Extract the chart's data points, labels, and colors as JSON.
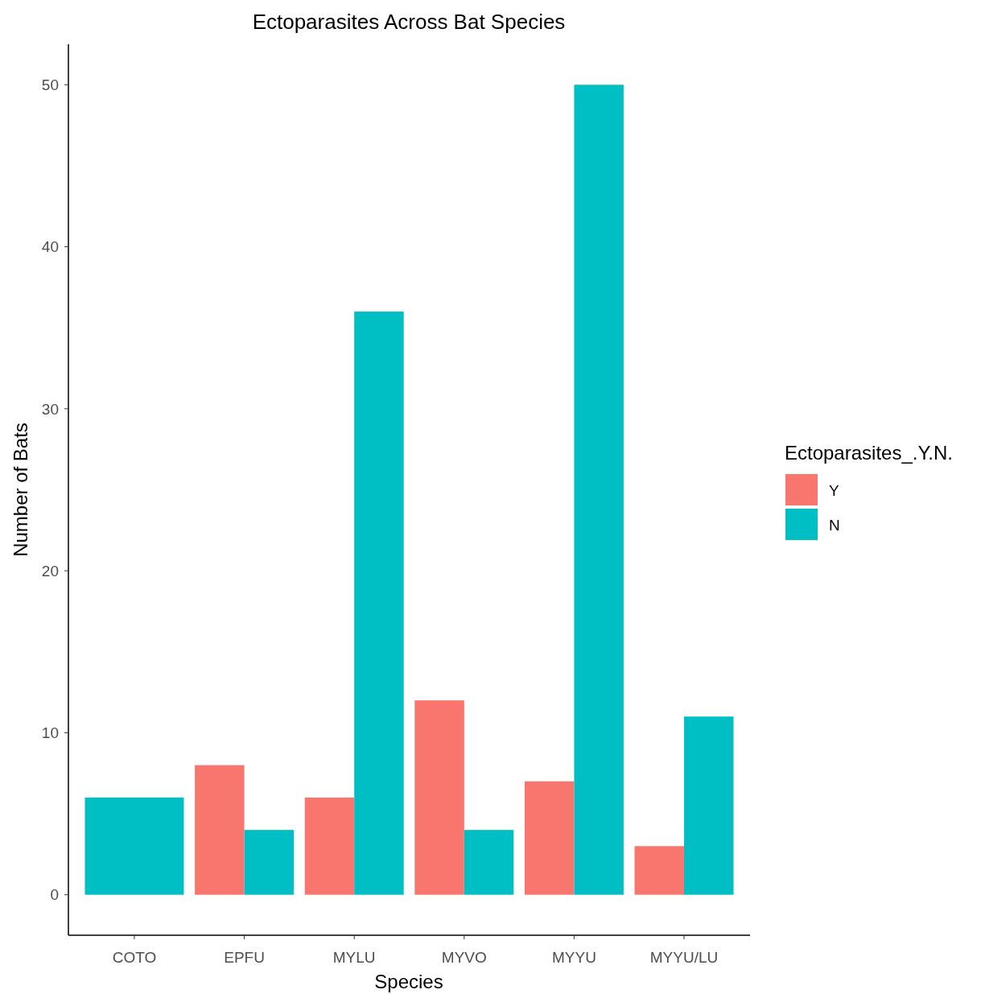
{
  "chart_data": {
    "type": "bar",
    "title": "Ectoparasites Across Bat Species",
    "xlabel": "Species",
    "ylabel": "Number of Bats",
    "legend_title": "Ectoparasites_.Y.N.",
    "categories": [
      "COTO",
      "EPFU",
      "MYLU",
      "MYVO",
      "MYYU",
      "MYYU/LU"
    ],
    "series": [
      {
        "name": "Y",
        "color": "#f8766d",
        "values": [
          null,
          8,
          6,
          12,
          7,
          3
        ]
      },
      {
        "name": "N",
        "color": "#00bfc4",
        "values": [
          6,
          4,
          36,
          4,
          50,
          11
        ]
      }
    ],
    "ylim": [
      -2.5,
      52.5
    ],
    "yticks": [
      0,
      10,
      20,
      30,
      40,
      50
    ],
    "grid": false,
    "legend": "right"
  }
}
